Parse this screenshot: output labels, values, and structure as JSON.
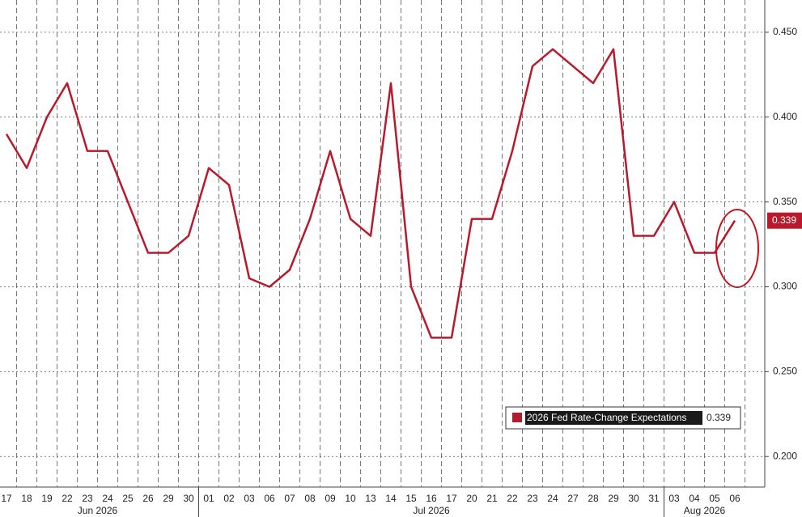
{
  "chart_data": {
    "type": "line",
    "categories": [
      "17",
      "18",
      "19",
      "22",
      "23",
      "24",
      "25",
      "26",
      "29",
      "30",
      "01",
      "02",
      "03",
      "06",
      "07",
      "08",
      "09",
      "10",
      "13",
      "14",
      "15",
      "16",
      "17",
      "20",
      "21",
      "22",
      "23",
      "24",
      "27",
      "28",
      "29",
      "30",
      "31",
      "03",
      "04",
      "05",
      "06"
    ],
    "months": [
      "Jun 2026",
      "Jul 2026",
      "Aug 2026"
    ],
    "series": [
      {
        "name": "2026 Fed Rate-Change Expectations",
        "color": "#b8192c",
        "values": [
          0.39,
          0.37,
          0.4,
          0.42,
          0.38,
          0.38,
          0.35,
          0.32,
          0.32,
          0.33,
          0.37,
          0.36,
          0.305,
          0.3,
          0.31,
          0.34,
          0.38,
          0.34,
          0.33,
          0.42,
          0.3,
          0.27,
          0.27,
          0.34,
          0.34,
          0.38,
          0.43,
          0.44,
          0.43,
          0.42,
          0.44,
          0.33,
          0.33,
          0.35,
          0.32,
          0.32,
          0.339
        ]
      }
    ],
    "ylim": [
      0.182,
      0.469
    ],
    "yticks": [
      {
        "value": 0.2,
        "label": "0.200"
      },
      {
        "value": 0.25,
        "label": "0.250"
      },
      {
        "value": 0.3,
        "label": "0.300"
      },
      {
        "value": 0.35,
        "label": "0.350"
      },
      {
        "value": 0.4,
        "label": "0.400"
      },
      {
        "value": 0.45,
        "label": "0.450"
      }
    ],
    "grid": true
  }
}
